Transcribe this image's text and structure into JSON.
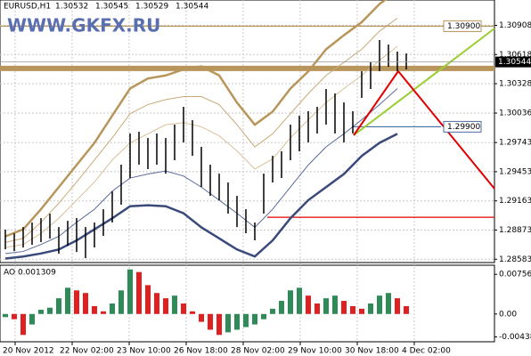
{
  "header": {
    "symbol": "EURUSD,H1",
    "ohlc": [
      1.30532,
      1.30545,
      1.30529,
      1.30544
    ]
  },
  "watermark": "WWW.GKFX.RU",
  "chart_data": [
    {
      "type": "ohlc",
      "color": "#000000",
      "high": [
        1.28877,
        1.28841,
        1.28903,
        1.28948,
        1.28992,
        1.29036,
        1.28903,
        1.28965,
        1.28992,
        1.28903,
        1.28948,
        1.2908,
        1.29257,
        1.29523,
        1.29833,
        1.2985,
        1.29788,
        1.29833,
        1.29788,
        1.29921,
        1.30098,
        1.29965,
        1.297,
        1.29523,
        1.29434,
        1.29346,
        1.29213,
        1.2908,
        1.28948,
        1.29434,
        1.29611,
        1.29656,
        1.29921,
        1.3001,
        1.30054,
        1.30098,
        1.30275,
        1.30231,
        1.30142,
        1.30054,
        1.30452,
        1.30541,
        1.30762,
        1.30717,
        1.30647,
        1.30629
      ],
      "low": [
        1.28682,
        1.28664,
        1.287,
        1.28726,
        1.28753,
        1.28788,
        1.28638,
        1.28717,
        1.28655,
        1.28594,
        1.287,
        1.28815,
        1.28948,
        1.29125,
        1.2939,
        1.29523,
        1.29479,
        1.29523,
        1.29434,
        1.29567,
        1.29744,
        1.29611,
        1.29302,
        1.29213,
        1.29169,
        1.29036,
        1.28903,
        1.28841,
        1.28771,
        1.29036,
        1.29346,
        1.2939,
        1.29567,
        1.29656,
        1.29744,
        1.29833,
        1.29921,
        1.29833,
        1.29744,
        1.29833,
        1.30187,
        1.30275,
        1.30452,
        1.30496,
        1.30452,
        1.3047
      ],
      "bands": [
        {
          "color": "#b8955a",
          "style": "thick",
          "values": [
            1.2881,
            1.2888,
            1.2908,
            1.293,
            1.2952,
            1.2974,
            1.3001,
            1.3028,
            1.3038,
            1.3041,
            1.3047,
            1.305,
            1.3041,
            1.3014,
            1.2992,
            1.3005,
            1.3028,
            1.3045,
            1.3067,
            1.3081,
            1.3094,
            1.3112,
            1.3125
          ]
        },
        {
          "color": "#c8aa78",
          "style": "thin",
          "values": [
            1.2875,
            1.2879,
            1.2895,
            1.2914,
            1.2935,
            1.2957,
            1.2979,
            1.3003,
            1.3012,
            1.3017,
            1.302,
            1.302,
            1.3012,
            1.2992,
            1.297,
            1.2983,
            1.3003,
            1.3023,
            1.3041,
            1.3054,
            1.3067,
            1.3085,
            1.3098
          ]
        },
        {
          "color": "#d8c098",
          "style": "thin",
          "values": [
            1.287,
            1.2873,
            1.2884,
            1.2899,
            1.2917,
            1.2935,
            1.2957,
            1.2974,
            1.2983,
            1.2992,
            1.2994,
            1.299,
            1.2981,
            1.2966,
            1.2948,
            1.2958,
            1.2979,
            1.2997,
            1.3014,
            1.3028,
            1.3041,
            1.3056,
            1.307
          ]
        },
        {
          "color": "#5a6a9a",
          "style": "thin",
          "values": [
            1.2864,
            1.2866,
            1.2873,
            1.2881,
            1.2895,
            1.2908,
            1.2926,
            1.2939,
            1.2943,
            1.2946,
            1.2941,
            1.293,
            1.2917,
            1.2904,
            1.289,
            1.2908,
            1.293,
            1.2952,
            1.297,
            1.2983,
            1.2997,
            1.3012,
            1.3028
          ]
        },
        {
          "color": "#3a4a7a",
          "style": "thick",
          "values": [
            1.2859,
            1.2861,
            1.2864,
            1.2868,
            1.2877,
            1.2888,
            1.2899,
            1.2911,
            1.2912,
            1.2911,
            1.2904,
            1.289,
            1.2879,
            1.2868,
            1.2861,
            1.2877,
            1.2899,
            1.2917,
            1.293,
            1.2943,
            1.2961,
            1.2974,
            1.2983
          ]
        }
      ],
      "levels": [
        {
          "value": 1.3048,
          "color": "#b8955a",
          "style": "thick"
        },
        {
          "value": 1.309,
          "label": "1.30900",
          "color": "#b8955a",
          "style": "thin"
        },
        {
          "value": 1.299,
          "label": "1.29900",
          "color": "#4a6fa5",
          "style": "thin"
        },
        {
          "value": 1.29,
          "color": "#e00000",
          "style": "thin"
        }
      ],
      "last_price": 1.30544,
      "ylim": [
        1.2855,
        1.3116
      ],
      "yticks": [
        1.30908,
        1.30618,
        1.30328,
        1.30036,
        1.29743,
        1.29453,
        1.29163,
        1.28873,
        1.28583
      ],
      "grid": true,
      "x_labels": [
        "20 Nov 2012",
        "22 Nov 02:00",
        "23 Nov 10:00",
        "26 Nov 18:00",
        "28 Nov 02:00",
        "29 Nov 10:00",
        "30 Nov 18:00",
        "4 Dec 02:00"
      ]
    },
    {
      "type": "histogram",
      "title": "AO 0.001309",
      "up_color": "#2e8b57",
      "down_color": "#e02020",
      "values": [
        -0.0006,
        -0.001,
        -0.004,
        -0.002,
        0.0008,
        0.0012,
        0.003,
        0.005,
        0.0045,
        0.004,
        0.0015,
        0.0005,
        0.002,
        0.0045,
        0.0085,
        0.008,
        0.0055,
        0.004,
        0.003,
        0.0035,
        0.002,
        0.0005,
        -0.0015,
        -0.003,
        -0.004,
        -0.0035,
        -0.003,
        -0.0025,
        -0.002,
        -0.001,
        0.001,
        0.0025,
        0.0045,
        0.005,
        0.0035,
        0.002,
        0.003,
        0.0035,
        0.0025,
        0.0015,
        0.001,
        0.002,
        0.0035,
        0.004,
        0.003,
        0.0015
      ],
      "ylim": [
        -0.0053,
        0.0093
      ],
      "yticks": [
        0.00756,
        {
          "value": 0,
          "label": "0.00"
        },
        -0.00438
      ]
    }
  ]
}
